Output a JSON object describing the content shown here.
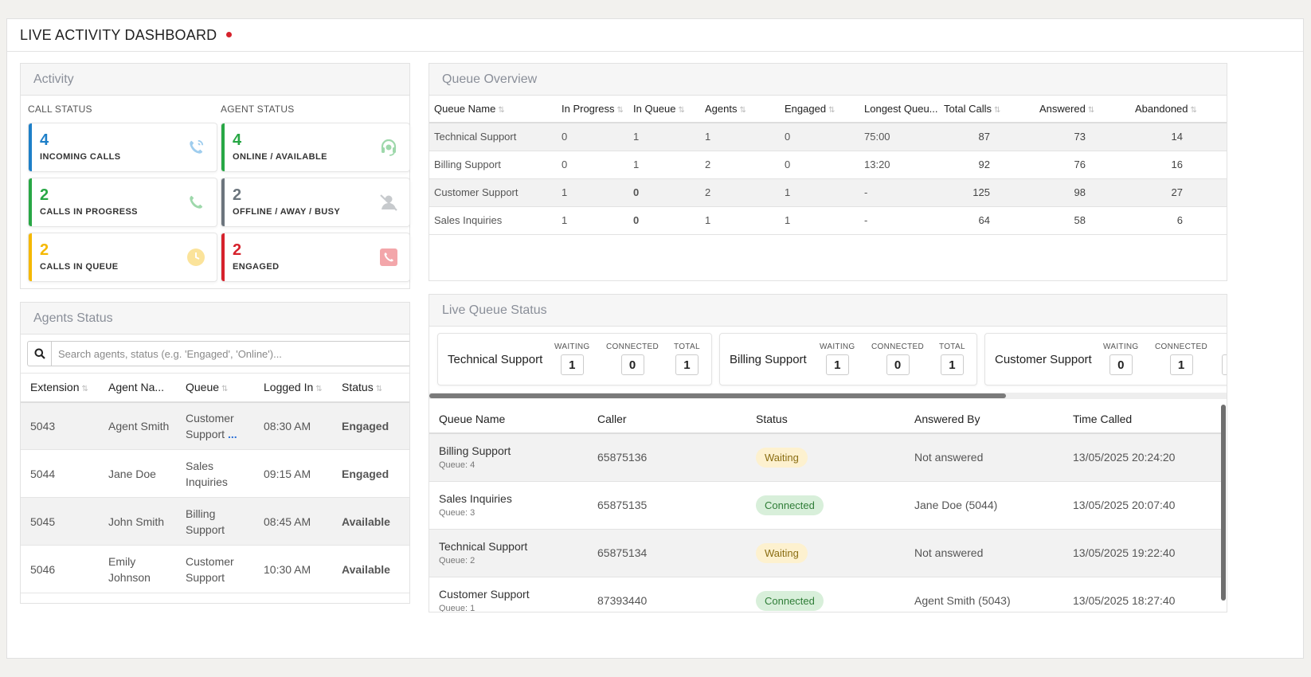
{
  "header": {
    "title": "LIVE ACTIVITY DASHBOARD"
  },
  "colors": {
    "blue": "#1e7fc8",
    "green": "#28a745",
    "grey": "#6c757d",
    "yellow": "#f5b800",
    "red": "#d6222c"
  },
  "activity": {
    "title": "Activity",
    "call_status_label": "CALL STATUS",
    "agent_status_label": "AGENT STATUS",
    "call_cards": [
      {
        "value": "4",
        "label": "INCOMING CALLS",
        "icon": "phone-ringing-icon"
      },
      {
        "value": "2",
        "label": "CALLS IN PROGRESS",
        "icon": "phone-icon"
      },
      {
        "value": "2",
        "label": "CALLS IN QUEUE",
        "icon": "clock-icon"
      }
    ],
    "agent_cards": [
      {
        "value": "4",
        "label": "ONLINE / AVAILABLE",
        "icon": "headset-icon"
      },
      {
        "value": "2",
        "label": "OFFLINE / AWAY / BUSY",
        "icon": "user-slash-icon"
      },
      {
        "value": "2",
        "label": "ENGAGED",
        "icon": "phone-square-icon"
      }
    ]
  },
  "agents": {
    "title": "Agents Status",
    "search_placeholder": "Search agents, status (e.g. 'Engaged', 'Online')...",
    "columns": [
      "Extension",
      "Agent Na...",
      "Queue",
      "Logged In",
      "Status"
    ],
    "rows": [
      {
        "ext": "5043",
        "name": "Agent Smith",
        "queue_1": "Customer",
        "queue_2": "Support",
        "more": "...",
        "logged_in": "08:30 AM",
        "status": "Engaged"
      },
      {
        "ext": "5044",
        "name": "Jane Doe",
        "queue_1": "Sales",
        "queue_2": "Inquiries",
        "more": "",
        "logged_in": "09:15 AM",
        "status": "Engaged"
      },
      {
        "ext": "5045",
        "name": "John Smith",
        "queue_1": "Billing",
        "queue_2": "Support",
        "more": "",
        "logged_in": "08:45 AM",
        "status": "Available"
      },
      {
        "ext": "5046",
        "name": "Emily Johnson",
        "queue_1": "Customer",
        "queue_2": "Support",
        "more": "",
        "logged_in": "10:30 AM",
        "status": "Available"
      }
    ]
  },
  "queue_overview": {
    "title": "Queue Overview",
    "columns": [
      "Queue Name",
      "In Progress",
      "In Queue",
      "Agents",
      "Engaged",
      "Longest Queu...",
      "Total Calls",
      "Answered",
      "Abandoned"
    ],
    "rows": [
      {
        "name": "Technical Support",
        "in_progress": "0",
        "in_queue": "1",
        "agents": "1",
        "engaged": "0",
        "longest": "75:00",
        "total": "87",
        "answered": "73",
        "abandoned": "14"
      },
      {
        "name": "Billing Support",
        "in_progress": "0",
        "in_queue": "1",
        "agents": "2",
        "engaged": "0",
        "longest": "13:20",
        "total": "92",
        "answered": "76",
        "abandoned": "16"
      },
      {
        "name": "Customer Support",
        "in_progress": "1",
        "in_queue": "0",
        "agents": "2",
        "engaged": "1",
        "longest": "-",
        "total": "125",
        "answered": "98",
        "abandoned": "27"
      },
      {
        "name": "Sales Inquiries",
        "in_progress": "1",
        "in_queue": "0",
        "agents": "1",
        "engaged": "1",
        "longest": "-",
        "total": "64",
        "answered": "58",
        "abandoned": "6"
      }
    ]
  },
  "live_queue": {
    "title": "Live Queue Status",
    "metric_labels": {
      "waiting": "WAITING",
      "connected": "CONNECTED",
      "total": "TOTAL",
      "total_clipped": "T"
    },
    "cards": [
      {
        "name": "Technical Support",
        "waiting": "1",
        "connected": "0",
        "total": "1"
      },
      {
        "name": "Billing Support",
        "waiting": "1",
        "connected": "0",
        "total": "1"
      },
      {
        "name": "Customer Support",
        "waiting": "0",
        "connected": "1",
        "total": ""
      }
    ],
    "columns": [
      "Queue Name",
      "Caller",
      "Status",
      "Answered By",
      "Time Called"
    ],
    "rows": [
      {
        "queue": "Billing Support",
        "sub": "Queue: 4",
        "caller": "65875136",
        "status": "Waiting",
        "answered_by": "Not answered",
        "time": "13/05/2025 20:24:20"
      },
      {
        "queue": "Sales Inquiries",
        "sub": "Queue: 3",
        "caller": "65875135",
        "status": "Connected",
        "answered_by": "Jane Doe (5044)",
        "time": "13/05/2025 20:07:40"
      },
      {
        "queue": "Technical Support",
        "sub": "Queue: 2",
        "caller": "65875134",
        "status": "Waiting",
        "answered_by": "Not answered",
        "time": "13/05/2025 19:22:40"
      },
      {
        "queue": "Customer Support",
        "sub": "Queue: 1",
        "caller": "87393440",
        "status": "Connected",
        "answered_by": "Agent Smith (5043)",
        "time": "13/05/2025 18:27:40"
      }
    ]
  }
}
